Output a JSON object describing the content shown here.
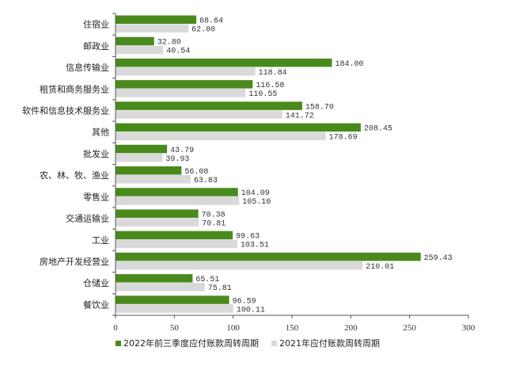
{
  "chart_data": {
    "type": "bar",
    "orientation": "horizontal",
    "categories": [
      "住宿业",
      "邮政业",
      "信息传输业",
      "租赁和商务服务业",
      "软件和信息技术服务业",
      "其他",
      "批发业",
      "农、林、牧、渔业",
      "零售业",
      "交通运输业",
      "工业",
      "房地产开发经营业",
      "仓储业",
      "餐饮业"
    ],
    "series": [
      {
        "name": "2022年前三季度应付账款周转周期",
        "color": "#4a8a1c",
        "values": [
          68.64,
          32.8,
          184.0,
          116.58,
          158.7,
          208.45,
          43.79,
          56.08,
          104.09,
          70.38,
          99.63,
          259.43,
          65.51,
          96.59
        ],
        "labels": [
          "68.64",
          "32.80",
          "184.00",
          "116.58",
          "158.70",
          "208.45",
          "43.79",
          "56.08",
          "104.09",
          "70.38",
          "99.63",
          "259.43",
          "65.51",
          "96.59"
        ]
      },
      {
        "name": "2021年应付账款周转周期",
        "color": "#d9d9d9",
        "values": [
          62.0,
          40.54,
          118.84,
          110.55,
          141.72,
          178.69,
          39.93,
          63.83,
          105.1,
          70.81,
          103.51,
          210.01,
          75.81,
          100.11
        ],
        "labels": [
          "62.00",
          "40.54",
          "118.84",
          "110.55",
          "141.72",
          "178.69",
          "39.93",
          "63.83",
          "105.10",
          "70.81",
          "103.51",
          "210.01",
          "75.81",
          "100.11"
        ]
      }
    ],
    "xlim": [
      0,
      300
    ],
    "xticks": [
      "0",
      "50",
      "100",
      "150",
      "200",
      "250",
      "300"
    ],
    "legend_position": "bottom",
    "grid": false
  }
}
